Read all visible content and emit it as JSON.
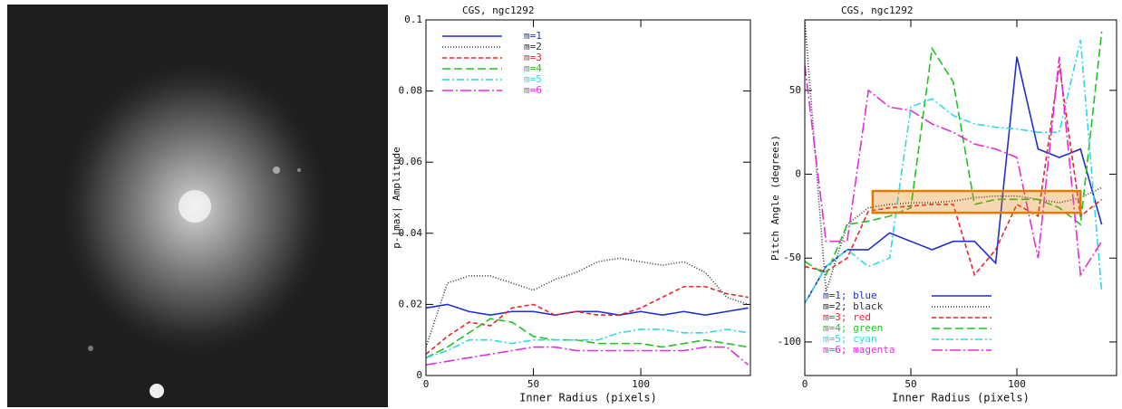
{
  "chart_data": [
    {
      "type": "line",
      "title": "CGS, ngc1292",
      "xlabel": "Inner Radius (pixels)",
      "ylabel": "p-|max| Amplitude",
      "xlim": [
        0,
        151
      ],
      "ylim": [
        0,
        0.1
      ],
      "xticks": [
        0,
        50,
        100
      ],
      "yticks": [
        0,
        0.02,
        0.04,
        0.06,
        0.08,
        0.1
      ],
      "legend": "upper left",
      "x": [
        0,
        10,
        20,
        30,
        40,
        50,
        60,
        70,
        80,
        90,
        100,
        110,
        120,
        130,
        140,
        150
      ],
      "series": [
        {
          "name": "m=1",
          "color": "#1f2fd0",
          "dash": "",
          "values": [
            0.019,
            0.02,
            0.018,
            0.017,
            0.018,
            0.018,
            0.017,
            0.018,
            0.018,
            0.017,
            0.018,
            0.017,
            0.018,
            0.017,
            0.018,
            0.019
          ]
        },
        {
          "name": "m=2",
          "color": "#333333",
          "dash": "1 2",
          "values": [
            0.008,
            0.026,
            0.028,
            0.028,
            0.026,
            0.024,
            0.027,
            0.029,
            0.032,
            0.033,
            0.032,
            0.031,
            0.032,
            0.029,
            0.022,
            0.02
          ]
        },
        {
          "name": "m=3",
          "color": "#e8262a",
          "dash": "5 3",
          "values": [
            0.006,
            0.011,
            0.015,
            0.014,
            0.019,
            0.02,
            0.017,
            0.018,
            0.017,
            0.017,
            0.019,
            0.022,
            0.025,
            0.025,
            0.023,
            0.022
          ]
        },
        {
          "name": "m=4",
          "color": "#22c322",
          "dash": "9 4",
          "values": [
            0.005,
            0.008,
            0.012,
            0.016,
            0.015,
            0.011,
            0.01,
            0.01,
            0.009,
            0.009,
            0.009,
            0.008,
            0.009,
            0.01,
            0.009,
            0.008
          ]
        },
        {
          "name": "m=5",
          "color": "#2fd8e8",
          "dash": "8 3 2 3",
          "values": [
            0.005,
            0.007,
            0.01,
            0.01,
            0.009,
            0.01,
            0.01,
            0.01,
            0.01,
            0.012,
            0.013,
            0.013,
            0.012,
            0.012,
            0.013,
            0.012
          ]
        },
        {
          "name": "m=6",
          "color": "#e030d8",
          "dash": "12 3 2 3",
          "values": [
            0.003,
            0.004,
            0.005,
            0.006,
            0.007,
            0.008,
            0.008,
            0.007,
            0.007,
            0.007,
            0.007,
            0.007,
            0.007,
            0.008,
            0.008,
            0.003
          ]
        }
      ]
    },
    {
      "type": "line",
      "title": "CGS, ngc1292",
      "xlabel": "Inner Radius (pixels)",
      "ylabel": "Pitch Angle (degrees)",
      "xlim": [
        0,
        147
      ],
      "ylim": [
        -120,
        92
      ],
      "xticks": [
        0,
        50,
        100
      ],
      "yticks": [
        -100,
        -50,
        0,
        50
      ],
      "legend": "lower left",
      "highlight": {
        "xlim": [
          32,
          130
        ],
        "ylim": [
          -23,
          -10
        ],
        "color": "#e07b00"
      },
      "x": [
        0,
        10,
        20,
        30,
        40,
        50,
        60,
        70,
        80,
        90,
        100,
        110,
        120,
        130,
        140
      ],
      "series": [
        {
          "name": "m=1; blue",
          "color": "#1f2fd0",
          "dash": "",
          "values": [
            -77,
            -55,
            -45,
            -45,
            -35,
            -40,
            -45,
            -40,
            -40,
            -53,
            70,
            15,
            10,
            15,
            -30
          ]
        },
        {
          "name": "m=2; black",
          "color": "#333333",
          "dash": "1 2",
          "values": [
            92,
            -70,
            -30,
            -20,
            -18,
            -17,
            -17,
            -16,
            -14,
            -13,
            -13,
            -15,
            -17,
            -14,
            -8
          ]
        },
        {
          "name": "m=3; red",
          "color": "#e8262a",
          "dash": "5 3",
          "values": [
            -55,
            -58,
            -50,
            -22,
            -20,
            -19,
            -18,
            -18,
            -60,
            -45,
            -18,
            -25,
            65,
            -25,
            -15
          ]
        },
        {
          "name": "m=4; green",
          "color": "#22c322",
          "dash": "9 4",
          "values": [
            -52,
            -60,
            -30,
            -28,
            -25,
            -20,
            75,
            55,
            -18,
            -15,
            -15,
            -15,
            -20,
            -30,
            85
          ]
        },
        {
          "name": "m=5; cyan",
          "color": "#2fd8e8",
          "dash": "8 3 2 3",
          "values": [
            -77,
            -55,
            -45,
            -55,
            -50,
            40,
            45,
            35,
            30,
            28,
            27,
            25,
            25,
            80,
            -70
          ]
        },
        {
          "name": "m=6; magenta",
          "color": "#e030d8",
          "dash": "12 3 2 3",
          "values": [
            65,
            -40,
            -40,
            50,
            40,
            38,
            30,
            25,
            18,
            15,
            10,
            -50,
            70,
            -60,
            -40
          ]
        }
      ]
    }
  ]
}
